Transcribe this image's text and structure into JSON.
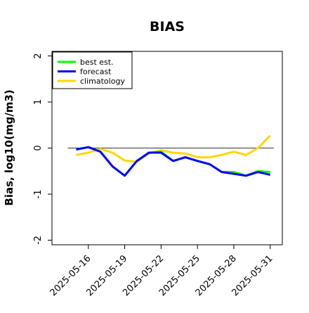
{
  "chart_data": {
    "type": "line",
    "title": "BIAS",
    "xlabel": "",
    "ylabel": "Bias, log10(mg/m3)",
    "xlim": [
      "2025-05-13",
      "2025-06-01"
    ],
    "ylim": [
      -2.1,
      2.1
    ],
    "yticks": [
      -2,
      -1,
      0,
      1,
      2
    ],
    "ytick_labels": [
      "-2",
      "-1",
      "0",
      "1",
      "2"
    ],
    "xticks": [
      "2025-05-16",
      "2025-05-19",
      "2025-05-22",
      "2025-05-25",
      "2025-05-28",
      "2025-05-31"
    ],
    "xtick_labels": [
      "2025-05-16",
      "2025-05-19",
      "2025-05-22",
      "2025-05-25",
      "2025-05-28",
      "2025-05-31"
    ],
    "highlighted_xtick": "2025-05-22",
    "highlight_color": "#228b22",
    "reference_line": 0,
    "reference_line_color": "#555555",
    "legend_position": "top-left",
    "x": [
      "2025-05-15",
      "2025-05-16",
      "2025-05-17",
      "2025-05-18",
      "2025-05-19",
      "2025-05-20",
      "2025-05-21",
      "2025-05-22",
      "2025-05-23",
      "2025-05-24",
      "2025-05-25",
      "2025-05-26",
      "2025-05-27",
      "2025-05-28",
      "2025-05-29",
      "2025-05-30",
      "2025-05-31"
    ],
    "series": [
      {
        "name": "best est.",
        "color": "#00ff00",
        "values": [
          -0.03,
          0.02,
          -0.08,
          -0.4,
          -0.6,
          -0.28,
          -0.1,
          -0.08,
          -0.28,
          -0.2,
          -0.28,
          -0.35,
          -0.52,
          -0.52,
          -0.6,
          -0.5,
          -0.52
        ]
      },
      {
        "name": "forecast",
        "color": "#0000ff",
        "values": [
          -0.03,
          0.02,
          -0.08,
          -0.4,
          -0.6,
          -0.28,
          -0.1,
          -0.1,
          -0.28,
          -0.2,
          -0.28,
          -0.35,
          -0.52,
          -0.56,
          -0.6,
          -0.52,
          -0.58
        ]
      },
      {
        "name": "climatology",
        "color": "#ffd700",
        "values": [
          -0.15,
          -0.1,
          -0.02,
          -0.1,
          -0.27,
          -0.3,
          -0.12,
          -0.05,
          -0.1,
          -0.12,
          -0.2,
          -0.2,
          -0.15,
          -0.08,
          -0.15,
          0.0,
          0.27
        ]
      }
    ]
  }
}
